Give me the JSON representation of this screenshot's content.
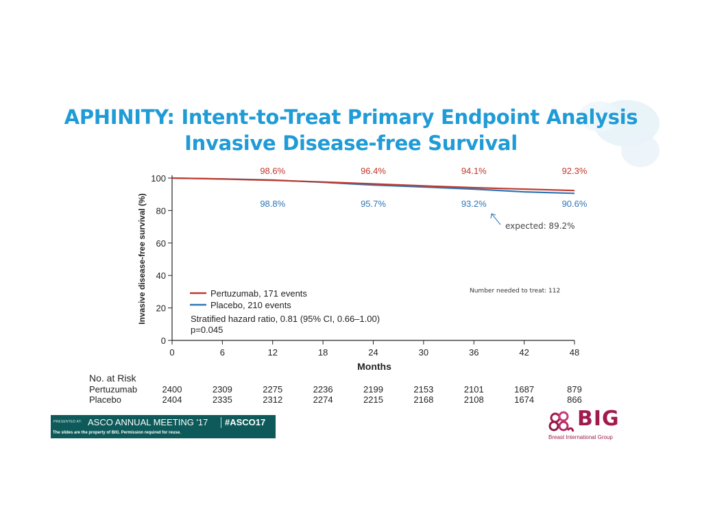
{
  "slide": {
    "title_line1": "APHINITY: Intent-to-Treat Primary Endpoint Analysis",
    "title_line2": "Invasive Disease-free Survival"
  },
  "colors": {
    "title": "#1f9bd6",
    "pertuzumab": "#c0392b",
    "placebo": "#2e75b6",
    "banner": "#0e5a5a",
    "logo": "#a11a4d"
  },
  "chart_data": {
    "type": "line",
    "xlabel": "Months",
    "ylabel": "Invasive disease-free survival (%)",
    "xlim": [
      0,
      48
    ],
    "ylim": [
      0,
      100
    ],
    "xticks": [
      0,
      6,
      12,
      18,
      24,
      30,
      36,
      42,
      48
    ],
    "yticks": [
      0,
      20,
      40,
      60,
      80,
      100
    ],
    "grid": false,
    "series": [
      {
        "name": "Pertuzumab, 171 events",
        "color": "#c0392b",
        "x": [
          0,
          6,
          12,
          18,
          24,
          30,
          36,
          42,
          48
        ],
        "y": [
          100,
          99.4,
          98.6,
          97.6,
          96.4,
          95.2,
          94.1,
          93.2,
          92.3
        ]
      },
      {
        "name": "Placebo, 210 events",
        "color": "#2e75b6",
        "x": [
          0,
          6,
          12,
          18,
          24,
          30,
          36,
          42,
          48
        ],
        "y": [
          100,
          99.5,
          98.8,
          97.4,
          95.7,
          94.5,
          93.2,
          91.5,
          90.6
        ]
      }
    ],
    "annotations": {
      "pertuzumab_labels": [
        {
          "x": 12,
          "text": "98.6%"
        },
        {
          "x": 24,
          "text": "96.4%"
        },
        {
          "x": 36,
          "text": "94.1%"
        },
        {
          "x": 48,
          "text": "92.3%"
        }
      ],
      "placebo_labels": [
        {
          "x": 12,
          "text": "98.8%"
        },
        {
          "x": 24,
          "text": "95.7%"
        },
        {
          "x": 36,
          "text": "93.2%"
        },
        {
          "x": 48,
          "text": "90.6%"
        }
      ],
      "expected": "expected: 89.2%",
      "nnt": "Number needed to treat: 112",
      "hazard_line1": "Stratified hazard ratio, 0.81 (95% CI, 0.66–1.00)",
      "hazard_line2": "p=0.045"
    },
    "risk_table": {
      "title": "No. at Risk",
      "rows": [
        {
          "label": "Pertuzumab",
          "values": [
            "2400",
            "2309",
            "2275",
            "2236",
            "2199",
            "2153",
            "2101",
            "1687",
            "879"
          ]
        },
        {
          "label": "Placebo",
          "values": [
            "2404",
            "2335",
            "2312",
            "2274",
            "2215",
            "2168",
            "2108",
            "1674",
            "866"
          ]
        }
      ]
    }
  },
  "banner": {
    "presented": "PRESENTED AT:",
    "meeting": "ASCO ANNUAL MEETING '17",
    "hashtag": "#ASCO17",
    "disclaimer": "The slides are the property of BIG. Permission required for reuse."
  },
  "logo": {
    "text": "BIG",
    "subtitle": "Breast International Group"
  }
}
